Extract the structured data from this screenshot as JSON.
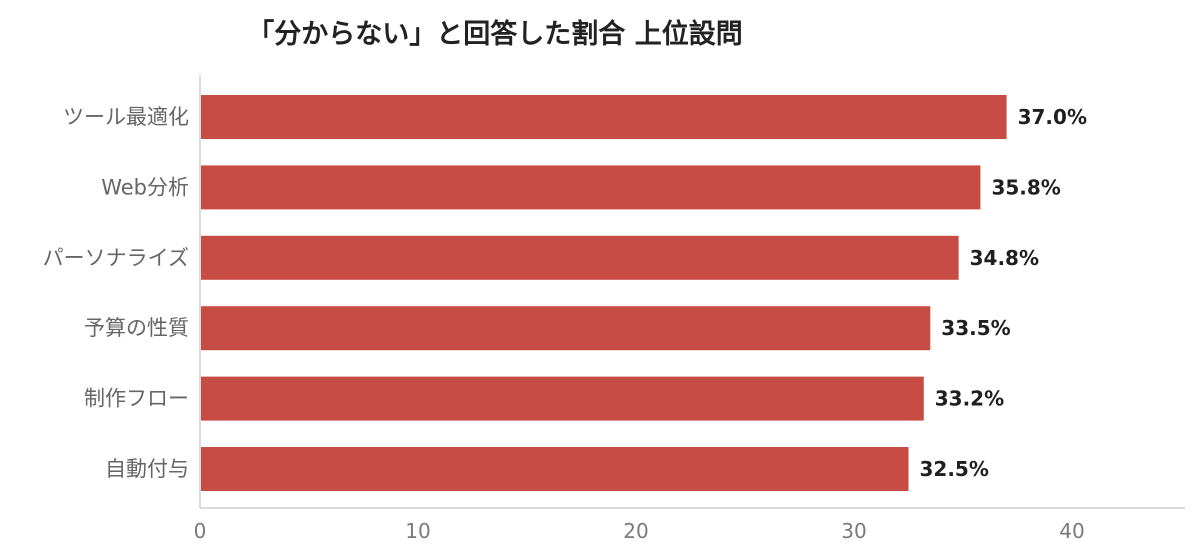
{
  "chart_data": {
    "type": "bar",
    "orientation": "horizontal",
    "title": "「分からない」と回答した割合 上位設問",
    "xlabel": "",
    "ylabel": "",
    "categories": [
      "ツール最適化",
      "Web分析",
      "パーソナライズ",
      "予算の性質",
      "制作フロー",
      "自動付与"
    ],
    "values": [
      37.0,
      35.8,
      34.8,
      33.5,
      33.2,
      32.5
    ],
    "value_labels": [
      "37.0%",
      "35.8%",
      "34.8%",
      "33.5%",
      "33.2%",
      "32.5%"
    ],
    "xlim": [
      0,
      45
    ],
    "xticks": [
      0,
      10,
      20,
      30,
      40
    ],
    "xtick_labels": [
      "0",
      "10",
      "20",
      "30",
      "40"
    ],
    "grid": false,
    "legend": "none",
    "colors": {
      "bar": "#c74c44",
      "value_label": "#1f1f1f",
      "category_label": "#666666",
      "tick_label": "#7a7a7a",
      "axis": "#cfcfcf"
    }
  }
}
